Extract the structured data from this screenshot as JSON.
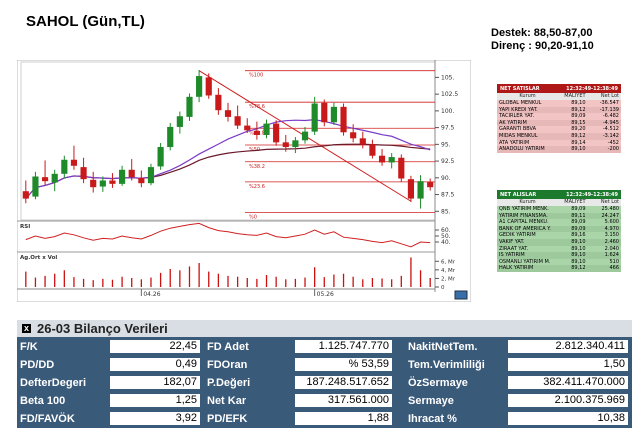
{
  "header": {
    "title": "SAHOL (Gün,TL)",
    "support": "Destek: 88,50-87,00",
    "resistance": "Direnç : 90,20-91,10"
  },
  "chart_data": {
    "type": "candlestick",
    "price_axis_ticks": [
      "105.",
      "102.5",
      "100.",
      "97.5",
      "95.",
      "92.5",
      "90.",
      "87.5",
      "85."
    ],
    "ylim": [
      84,
      107
    ],
    "date_labels": [
      "04.26",
      "05.26"
    ],
    "fib_labels": [
      "%100",
      "%78.6",
      "%61.8",
      "%50",
      "%38.2",
      "%23.6",
      "%0"
    ],
    "fib_levels": [
      106,
      101.3,
      97.4,
      94.9,
      92.4,
      89.4,
      84.8
    ],
    "candles": [
      {
        "o": 88.0,
        "h": 89.6,
        "l": 86.2,
        "c": 86.9
      },
      {
        "o": 87.2,
        "h": 90.9,
        "l": 86.8,
        "c": 90.2
      },
      {
        "o": 90.1,
        "h": 92.6,
        "l": 88.9,
        "c": 89.5
      },
      {
        "o": 89.3,
        "h": 91.2,
        "l": 88.0,
        "c": 90.6
      },
      {
        "o": 90.6,
        "h": 93.3,
        "l": 89.9,
        "c": 92.7
      },
      {
        "o": 92.7,
        "h": 94.8,
        "l": 91.2,
        "c": 91.8
      },
      {
        "o": 91.6,
        "h": 93.0,
        "l": 89.2,
        "c": 89.8
      },
      {
        "o": 89.7,
        "h": 90.9,
        "l": 87.8,
        "c": 88.6
      },
      {
        "o": 88.7,
        "h": 90.2,
        "l": 87.9,
        "c": 89.6
      },
      {
        "o": 89.6,
        "h": 90.7,
        "l": 88.5,
        "c": 89.1
      },
      {
        "o": 89.1,
        "h": 91.8,
        "l": 88.8,
        "c": 91.2
      },
      {
        "o": 91.2,
        "h": 92.8,
        "l": 89.6,
        "c": 90.1
      },
      {
        "o": 90.0,
        "h": 91.1,
        "l": 88.6,
        "c": 89.2
      },
      {
        "o": 89.2,
        "h": 92.1,
        "l": 88.9,
        "c": 91.6
      },
      {
        "o": 91.7,
        "h": 95.2,
        "l": 91.2,
        "c": 94.6
      },
      {
        "o": 94.6,
        "h": 98.2,
        "l": 94.1,
        "c": 97.6
      },
      {
        "o": 97.6,
        "h": 99.9,
        "l": 96.6,
        "c": 99.2
      },
      {
        "o": 99.1,
        "h": 102.6,
        "l": 98.5,
        "c": 102.1
      },
      {
        "o": 102.1,
        "h": 106.1,
        "l": 101.3,
        "c": 105.2
      },
      {
        "o": 105.0,
        "h": 105.6,
        "l": 101.8,
        "c": 102.3
      },
      {
        "o": 102.4,
        "h": 103.4,
        "l": 99.4,
        "c": 100.1
      },
      {
        "o": 100.1,
        "h": 101.2,
        "l": 98.4,
        "c": 99.1
      },
      {
        "o": 99.2,
        "h": 100.8,
        "l": 97.3,
        "c": 97.8
      },
      {
        "o": 97.8,
        "h": 98.9,
        "l": 96.7,
        "c": 97.1
      },
      {
        "o": 97.0,
        "h": 98.4,
        "l": 95.7,
        "c": 96.4
      },
      {
        "o": 96.4,
        "h": 98.7,
        "l": 95.9,
        "c": 98.1
      },
      {
        "o": 98.1,
        "h": 98.6,
        "l": 94.8,
        "c": 95.3
      },
      {
        "o": 95.3,
        "h": 96.4,
        "l": 93.9,
        "c": 94.6
      },
      {
        "o": 94.6,
        "h": 96.1,
        "l": 93.7,
        "c": 95.6
      },
      {
        "o": 95.6,
        "h": 97.6,
        "l": 95.1,
        "c": 96.9
      },
      {
        "o": 96.9,
        "h": 102.1,
        "l": 96.4,
        "c": 101.1
      },
      {
        "o": 101.2,
        "h": 101.7,
        "l": 97.7,
        "c": 98.3
      },
      {
        "o": 98.3,
        "h": 101.2,
        "l": 97.9,
        "c": 100.6
      },
      {
        "o": 100.6,
        "h": 101.1,
        "l": 96.3,
        "c": 96.8
      },
      {
        "o": 96.8,
        "h": 98.0,
        "l": 95.3,
        "c": 95.9
      },
      {
        "o": 95.9,
        "h": 96.9,
        "l": 94.4,
        "c": 95.0
      },
      {
        "o": 95.0,
        "h": 95.7,
        "l": 92.9,
        "c": 93.3
      },
      {
        "o": 93.3,
        "h": 94.3,
        "l": 91.8,
        "c": 92.3
      },
      {
        "o": 92.3,
        "h": 93.7,
        "l": 91.4,
        "c": 93.1
      },
      {
        "o": 93.0,
        "h": 93.5,
        "l": 89.4,
        "c": 89.9
      },
      {
        "o": 89.8,
        "h": 90.3,
        "l": 86.4,
        "c": 86.9
      },
      {
        "o": 86.9,
        "h": 90.4,
        "l": 85.4,
        "c": 89.5
      },
      {
        "o": 89.4,
        "h": 89.9,
        "l": 88.1,
        "c": 88.6
      }
    ],
    "rsi": {
      "label": "RSI",
      "ticks": [
        "60.",
        "50.",
        "40."
      ],
      "ylim": [
        30,
        70
      ],
      "values": [
        44,
        50,
        46,
        49,
        55,
        52,
        47,
        43,
        46,
        45,
        50,
        47,
        45,
        51,
        58,
        63,
        66,
        69,
        71,
        64,
        59,
        57,
        54,
        52,
        51,
        55,
        49,
        47,
        50,
        53,
        60,
        53,
        57,
        48,
        46,
        44,
        41,
        39,
        42,
        37,
        32,
        40,
        39
      ]
    },
    "volume": {
      "label": "Ag.Ort x Vol",
      "ticks": [
        "6, Mr",
        "4, Mr",
        "2, Mr",
        "0"
      ],
      "ylim": [
        0,
        7
      ],
      "values": [
        3.6,
        2.2,
        2.6,
        3.1,
        3.9,
        2.3,
        1.9,
        1.6,
        1.9,
        1.7,
        2.4,
        2.1,
        1.8,
        2.2,
        3.3,
        4.2,
        3.9,
        4.8,
        5.6,
        3.6,
        3.1,
        2.6,
        2.4,
        2.1,
        1.9,
        2.8,
        2.4,
        1.8,
        1.9,
        2.2,
        4.6,
        2.3,
        2.9,
        3.1,
        2.4,
        1.8,
        2.1,
        2.0,
        1.8,
        2.6,
        6.9,
        3.9,
        2.1
      ]
    }
  },
  "sell_table": {
    "title": "NET SATISLAR",
    "time": "12:32:49-12:38:49",
    "headers": [
      "Kurum",
      "MALIYET",
      "Net Lot"
    ],
    "rows": [
      [
        "GLOBAL MENKUL",
        "89,10",
        "-36.547"
      ],
      [
        "YAPI KREDI YAT.",
        "89,12",
        "-17.139"
      ],
      [
        "TACIRLER YAT.",
        "89,09",
        "-6.482"
      ],
      [
        "AK YATIRIM",
        "89,15",
        "-4.945"
      ],
      [
        "GARANTI BBVA",
        "89,20",
        "-4.512"
      ],
      [
        "MIDAS MENKUL",
        "89,12",
        "-3.142"
      ],
      [
        "ATA YATIRIM",
        "89,14",
        "-452"
      ],
      [
        "ANADOLU YATIRIM",
        "89,10",
        "-200"
      ]
    ]
  },
  "buy_table": {
    "title": "NET ALISLAR",
    "time": "12:32:49-12:38:49",
    "headers": [
      "Kurum",
      "MALIYET",
      "Net Lot"
    ],
    "rows": [
      [
        "QNB YATIRIM MENK.",
        "89,09",
        "25.480"
      ],
      [
        "YATIRIM FINANSMA.",
        "89,11",
        "24.247"
      ],
      [
        "A1 CAPITAL MENKU.",
        "89,09",
        "5.600"
      ],
      [
        "BANK OF AMERICA Y.",
        "89,09",
        "4.970"
      ],
      [
        "GEDIK YATIRIM",
        "89,16",
        "3.150"
      ],
      [
        "VAKIF YAT.",
        "89,10",
        "2.460"
      ],
      [
        "ZIRAAT YAT.",
        "89,10",
        "2.040"
      ],
      [
        "IS YATIRIM",
        "89,10",
        "1.624"
      ],
      [
        "OSMANLI YATIRIM M.",
        "89,10",
        "510"
      ],
      [
        "HALK YATIRIM",
        "89,12",
        "466"
      ]
    ]
  },
  "balance": {
    "title": "26-03 Bilanço Verileri",
    "close_icon": "x",
    "rows": [
      [
        {
          "label": "F/K",
          "value": "22,45"
        },
        {
          "label": "FD Adet",
          "value": "1.125.747.770"
        },
        {
          "label": "NakitNetTem.",
          "value": "2.812.340.411"
        }
      ],
      [
        {
          "label": "PD/DD",
          "value": "0,49"
        },
        {
          "label": "FDOran",
          "value": "% 53,59"
        },
        {
          "label": "Tem.Verimliliği",
          "value": "1,50"
        }
      ],
      [
        {
          "label": "DefterDegeri",
          "value": "182,07"
        },
        {
          "label": "P.Değeri",
          "value": "187.248.517.652"
        },
        {
          "label": "ÖzSermaye",
          "value": "382.411.470.000"
        }
      ],
      [
        {
          "label": "Beta 100",
          "value": "1,25"
        },
        {
          "label": "Net Kar",
          "value": "317.561.000"
        },
        {
          "label": "Sermaye",
          "value": "2.100.375.969"
        }
      ],
      [
        {
          "label": "FD/FAVÖK",
          "value": "3,92"
        },
        {
          "label": "PD/EFK",
          "value": "1,88"
        },
        {
          "label": "Ihracat %",
          "value": "10,38"
        }
      ]
    ]
  },
  "colors": {
    "up": "#1e8a2a",
    "down": "#c81a1a",
    "sell_header": "#b01818",
    "sell_rows": "#f2c4c4",
    "buy_header": "#1c7a2c",
    "buy_rows": "#a9d5a9",
    "panel": "#3a5a7a"
  }
}
